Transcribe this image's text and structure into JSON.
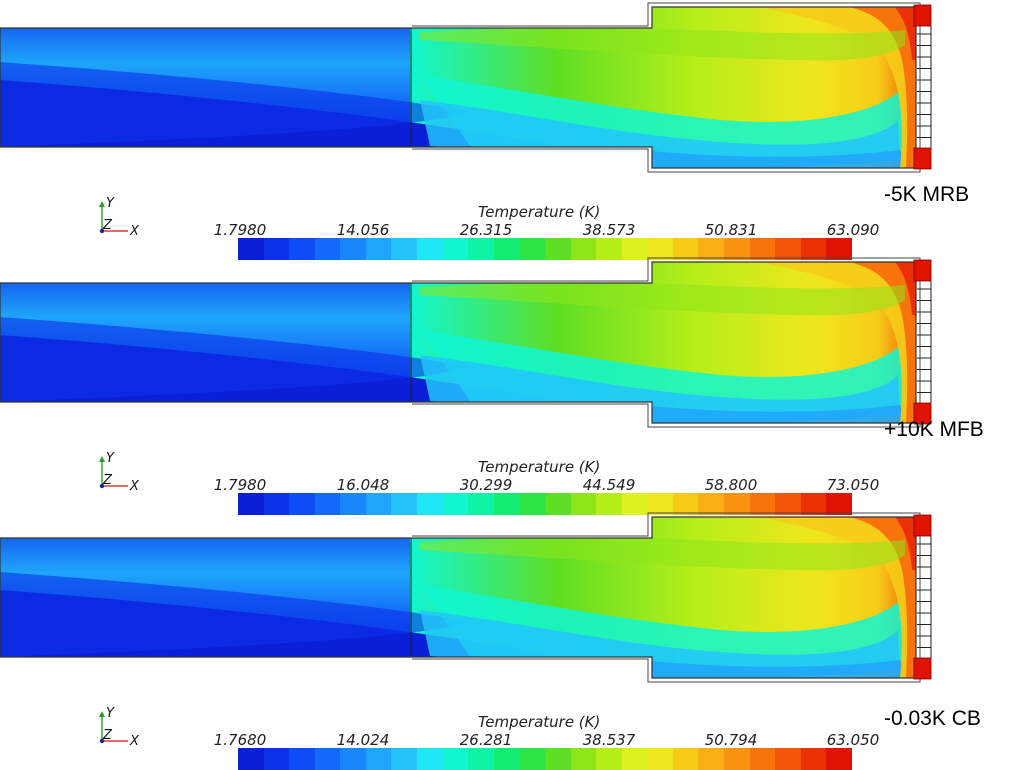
{
  "legend_title": "Temperature (K)",
  "axis_triad": {
    "y": "Y",
    "z": "Z",
    "x": "X"
  },
  "colormap": [
    "#0a1fd6",
    "#0b32e8",
    "#0e4cf5",
    "#1468fa",
    "#1a86fb",
    "#1fa6fb",
    "#22c4fb",
    "#1ee6f4",
    "#10f6d2",
    "#0ff3a4",
    "#13ec72",
    "#2ee346",
    "#5ede25",
    "#8ee51a",
    "#b7ee1a",
    "#dcf21d",
    "#f0e61c",
    "#f6cc18",
    "#f8b015",
    "#f89410",
    "#f6740b",
    "#f25507",
    "#ea3004",
    "#e01202"
  ],
  "panels": [
    {
      "case_label": "-5K MRB",
      "ticks": [
        "1.7980",
        "14.056",
        "26.315",
        "38.573",
        "50.831",
        "63.090"
      ]
    },
    {
      "case_label": "+10K MFB",
      "ticks": [
        "1.7980",
        "16.048",
        "30.299",
        "44.549",
        "58.800",
        "73.050"
      ]
    },
    {
      "case_label": "-0.03K CB",
      "ticks": [
        "1.7680",
        "14.024",
        "26.281",
        "38.537",
        "50.794",
        "63.050"
      ]
    }
  ]
}
